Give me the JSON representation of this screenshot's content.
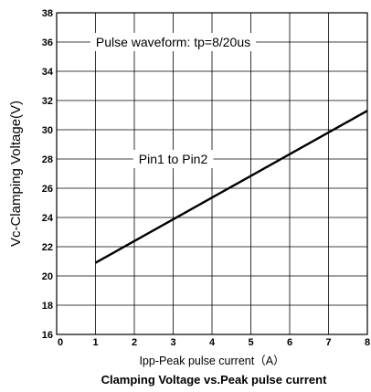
{
  "chart_data": {
    "type": "line",
    "title": "Clamping Voltage vs.Peak pulse current",
    "xlabel": "Ipp-Peak pulse current（A）",
    "ylabel": "Vc-Clamping Voltage(V)",
    "xlim": [
      0,
      8
    ],
    "ylim": [
      16,
      38
    ],
    "x_ticks": [
      "0",
      "1",
      "2",
      "3",
      "4",
      "5",
      "6",
      "7",
      "8"
    ],
    "y_ticks": [
      "16",
      "18",
      "20",
      "22",
      "24",
      "26",
      "28",
      "30",
      "32",
      "34",
      "36",
      "38"
    ],
    "grid": true,
    "series": [
      {
        "x": [
          1,
          8
        ],
        "y": [
          20.9,
          31.3
        ]
      }
    ],
    "annotations": [
      {
        "text": "Pulse waveform: tp=8/20us",
        "x": 3.0,
        "y": 36
      },
      {
        "text": "Pin1 to Pin2",
        "x": 3.0,
        "y": 28
      }
    ]
  }
}
